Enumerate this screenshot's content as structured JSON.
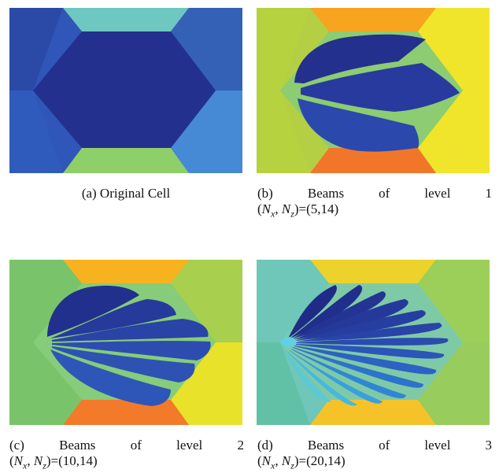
{
  "figure": {
    "panels": [
      {
        "id": "a",
        "caption_line1": "(a) Original Cell",
        "caption_line2": ""
      },
      {
        "id": "b",
        "caption_tag": "(b)",
        "caption_words": [
          "Beams",
          "of",
          "level",
          "1"
        ],
        "caption_line2": "(Nₓ, Nₓ)=(5,14)",
        "caption_params": "(N_x, N_z)=(5,14)"
      },
      {
        "id": "c",
        "caption_tag": "(c)",
        "caption_words": [
          "Beams",
          "of",
          "level",
          "2"
        ],
        "caption_params": "(N_x, N_z)=(10,14)"
      },
      {
        "id": "d",
        "caption_tag": "(d)",
        "caption_words": [
          "Beams",
          "of",
          "level",
          "3"
        ],
        "caption_params": "(N_x, N_z)=(20,14)"
      }
    ],
    "params_text": {
      "b": "=(5,14)",
      "c": "=(10,14)",
      "d": "=(20,14)"
    }
  }
}
